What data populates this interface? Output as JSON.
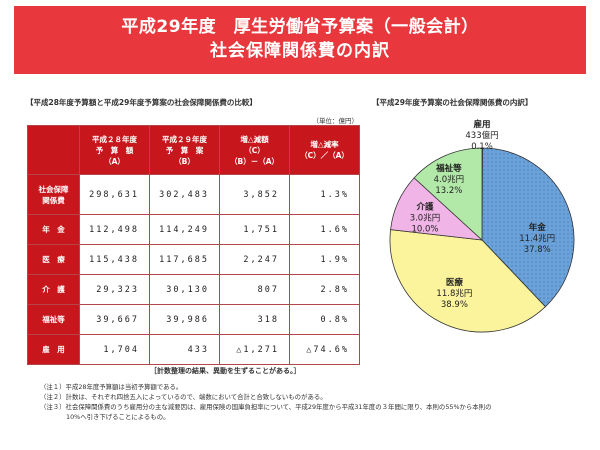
{
  "banner": {
    "line1": "平成29年度　厚生労働省予算案（一般会計）",
    "line2": "社会保障関係費の内訳"
  },
  "table": {
    "heading": "【平成28年度予算額と平成29年度予算案の社会保障関係費の比較】",
    "unit": "（単位：億円）",
    "headers": [
      {
        "l1": "平成２８年度",
        "l2": "予　算　額",
        "l3": "（A）"
      },
      {
        "l1": "平成２９年度",
        "l2": "予　算　案",
        "l3": "（B）"
      },
      {
        "l1": "増△減額",
        "l2": "（C）",
        "l3": "（B）－（A）"
      },
      {
        "l1": "増△減率",
        "l2": "（C）／（A）",
        "l3": ""
      }
    ],
    "rows": [
      {
        "label1": "社会保障",
        "label2": "関係費",
        "a": "298,631",
        "b": "302,483",
        "c": "3,852",
        "d": "1.3%"
      },
      {
        "label1": "年　金",
        "label2": "",
        "a": "112,498",
        "b": "114,249",
        "c": "1,751",
        "d": "1.6%"
      },
      {
        "label1": "医　療",
        "label2": "",
        "a": "115,438",
        "b": "117,685",
        "c": "2,247",
        "d": "1.9%"
      },
      {
        "label1": "介　護",
        "label2": "",
        "a": "29,323",
        "b": "30,130",
        "c": "807",
        "d": "2.8%"
      },
      {
        "label1": "福祉等",
        "label2": "",
        "a": "39,667",
        "b": "39,986",
        "c": "318",
        "d": "0.8%"
      },
      {
        "label1": "雇　用",
        "label2": "",
        "a": "1,704",
        "b": "433",
        "c": "△1,271",
        "d": "△74.6%"
      }
    ],
    "footnote": "［計数整理の結果、異動を生ずることがある。］"
  },
  "notes": [
    "（注１）平成28年度予算額は当初予算額である。",
    "（注２）計数は、それぞれ四捨五入によっているので、端数において合計と合致しないものがある。",
    "（注３）社会保障関係費のうち雇用分の主な減要因は、雇用保険の国庫負担率について、平成29年度から平成31年度の３年間に限り、本則の55%から本則の",
    "10%へ引き下げることによるもの。"
  ],
  "chart_data": {
    "type": "pie",
    "title": "【平成29年度予算案の社会保障関係費の内訳】",
    "unit": "兆円",
    "slices": [
      {
        "name": "年金",
        "value": 11.4,
        "percent": 37.8,
        "amount_label": "11.4兆円",
        "percent_label": "37.8%",
        "color": "#6aa2dc"
      },
      {
        "name": "医療",
        "value": 11.8,
        "percent": 38.9,
        "amount_label": "11.8兆円",
        "percent_label": "38.9%",
        "color": "#fbf49c"
      },
      {
        "name": "介護",
        "value": 3.0,
        "percent": 10.0,
        "amount_label": "3.0兆円",
        "percent_label": "10.0%",
        "color": "#f0b4e6"
      },
      {
        "name": "福祉等",
        "value": 4.0,
        "percent": 13.2,
        "amount_label": "4.0兆円",
        "percent_label": "13.2%",
        "color": "#b2e8a8"
      },
      {
        "name": "雇用",
        "value": 0.0433,
        "percent": 0.1,
        "amount_label": "433億円",
        "percent_label": "0.1%",
        "color": "#ffffff"
      }
    ]
  }
}
